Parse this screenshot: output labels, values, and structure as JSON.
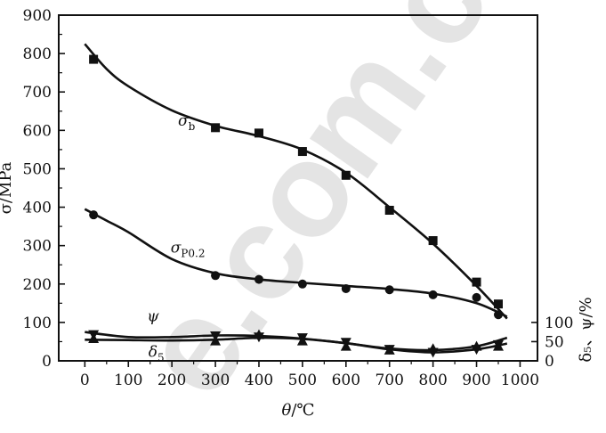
{
  "chart_data": {
    "type": "line",
    "xlabel": "θ/℃",
    "ylabel": "σ/MPa",
    "ylabel_right": "δ₅、ψ/%",
    "xlim": [
      -60,
      1040
    ],
    "ylim": [
      0,
      900
    ],
    "x_ticks": [
      "0",
      "100",
      "200",
      "300",
      "400",
      "500",
      "600",
      "700",
      "800",
      "900",
      "1000"
    ],
    "y_ticks": [
      "0",
      "100",
      "200",
      "300",
      "400",
      "500",
      "600",
      "700",
      "800",
      "900"
    ],
    "right_ticks": [
      "0",
      "50",
      "100"
    ],
    "right_scale_max_pct": 100,
    "watermark": "e.com.c",
    "series": [
      {
        "name": "σb",
        "label_main": "σ",
        "label_sub": "b",
        "marker": "square",
        "points": [
          [
            20,
            785
          ],
          [
            300,
            607
          ],
          [
            400,
            593
          ],
          [
            500,
            545
          ],
          [
            600,
            483
          ],
          [
            700,
            392
          ],
          [
            800,
            313
          ],
          [
            900,
            205
          ],
          [
            950,
            148
          ]
        ],
        "curve": [
          [
            0,
            825
          ],
          [
            50,
            760
          ],
          [
            100,
            715
          ],
          [
            200,
            652
          ],
          [
            300,
            612
          ],
          [
            400,
            585
          ],
          [
            500,
            550
          ],
          [
            600,
            490
          ],
          [
            700,
            400
          ],
          [
            800,
            305
          ],
          [
            900,
            195
          ],
          [
            970,
            110
          ]
        ]
      },
      {
        "name": "σP0.2",
        "label_main": "σ",
        "label_sub": "P0.2",
        "marker": "circle",
        "points": [
          [
            20,
            380
          ],
          [
            300,
            222
          ],
          [
            400,
            212
          ],
          [
            500,
            200
          ],
          [
            600,
            188
          ],
          [
            700,
            185
          ],
          [
            800,
            172
          ],
          [
            900,
            165
          ],
          [
            950,
            120
          ]
        ],
        "curve": [
          [
            0,
            395
          ],
          [
            50,
            365
          ],
          [
            100,
            335
          ],
          [
            200,
            265
          ],
          [
            300,
            228
          ],
          [
            400,
            212
          ],
          [
            500,
            203
          ],
          [
            600,
            195
          ],
          [
            700,
            187
          ],
          [
            800,
            175
          ],
          [
            900,
            150
          ],
          [
            970,
            115
          ]
        ]
      },
      {
        "name": "ψ",
        "label_main": "ψ",
        "label_sub": "",
        "marker": "triangle-down",
        "points": [
          [
            20,
            68
          ],
          [
            300,
            65
          ],
          [
            400,
            62
          ],
          [
            500,
            60
          ],
          [
            600,
            48
          ],
          [
            700,
            30
          ],
          [
            800,
            22
          ],
          [
            900,
            30
          ],
          [
            950,
            42
          ]
        ],
        "curve": [
          [
            0,
            75
          ],
          [
            100,
            62
          ],
          [
            200,
            62
          ],
          [
            300,
            66
          ],
          [
            400,
            65
          ],
          [
            500,
            58
          ],
          [
            600,
            46
          ],
          [
            700,
            30
          ],
          [
            800,
            22
          ],
          [
            900,
            30
          ],
          [
            970,
            45
          ]
        ]
      },
      {
        "name": "δ5",
        "label_main": "δ",
        "label_sub": "5",
        "marker": "triangle-up",
        "points": [
          [
            20,
            58
          ],
          [
            300,
            52
          ],
          [
            400,
            68
          ],
          [
            500,
            52
          ],
          [
            600,
            38
          ],
          [
            700,
            28
          ],
          [
            800,
            32
          ],
          [
            900,
            38
          ],
          [
            950,
            38
          ]
        ],
        "curve": [
          [
            0,
            55
          ],
          [
            100,
            54
          ],
          [
            200,
            53
          ],
          [
            300,
            55
          ],
          [
            400,
            60
          ],
          [
            500,
            57
          ],
          [
            600,
            46
          ],
          [
            700,
            32
          ],
          [
            800,
            28
          ],
          [
            900,
            38
          ],
          [
            970,
            60
          ]
        ]
      }
    ]
  }
}
